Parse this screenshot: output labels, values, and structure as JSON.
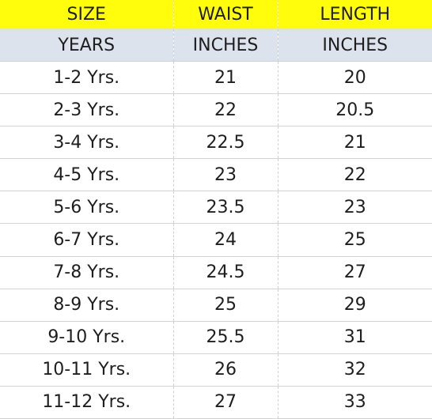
{
  "table": {
    "header": {
      "size": "SIZE",
      "waist": "WAIST",
      "length": "LENGTH"
    },
    "units": {
      "size": "YEARS",
      "waist": "INCHES",
      "length": "INCHES"
    },
    "rows": [
      {
        "size": "1-2 Yrs.",
        "waist": "21",
        "length": "20"
      },
      {
        "size": "2-3 Yrs.",
        "waist": "22",
        "length": "20.5"
      },
      {
        "size": "3-4 Yrs.",
        "waist": "22.5",
        "length": "21"
      },
      {
        "size": "4-5 Yrs.",
        "waist": "23",
        "length": "22"
      },
      {
        "size": "5-6 Yrs.",
        "waist": "23.5",
        "length": "23"
      },
      {
        "size": "6-7 Yrs.",
        "waist": "24",
        "length": "25"
      },
      {
        "size": "7-8 Yrs.",
        "waist": "24.5",
        "length": "27"
      },
      {
        "size": "8-9 Yrs.",
        "waist": "25",
        "length": "29"
      },
      {
        "size": "9-10 Yrs.",
        "waist": "25.5",
        "length": "31"
      },
      {
        "size": "10-11 Yrs.",
        "waist": "26",
        "length": "32"
      },
      {
        "size": "11-12 Yrs.",
        "waist": "27",
        "length": "33"
      }
    ],
    "colors": {
      "header_background": "#fffc0c",
      "units_background": "#dde3ec",
      "text": "#1e1e1e"
    }
  }
}
